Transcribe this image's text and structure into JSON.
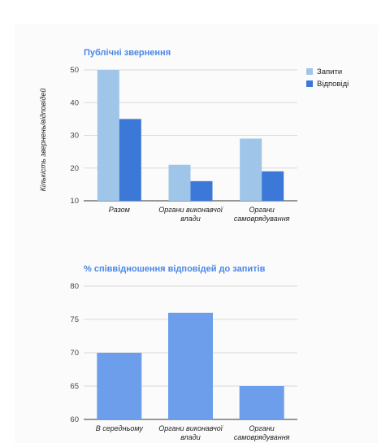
{
  "chart_data": [
    {
      "type": "bar",
      "title": "Публічні звернення",
      "ylabel": "Кількість звернень/відповідей",
      "xlabel": "",
      "ylim": [
        10,
        50
      ],
      "yticks": [
        10,
        20,
        30,
        40,
        50
      ],
      "grid": true,
      "legend_position": "right",
      "categories": [
        [
          "Разом"
        ],
        [
          "Органи виконавчої",
          "влади"
        ],
        [
          "Органи",
          "самоврядування"
        ]
      ],
      "series": [
        {
          "name": "Запити",
          "color": "#9fc5e8",
          "values": [
            50,
            21,
            29
          ]
        },
        {
          "name": "Відповіді",
          "color": "#3c78d8",
          "values": [
            35,
            16,
            19
          ]
        }
      ]
    },
    {
      "type": "bar",
      "title": "% співвідношення відповідей до запитів",
      "xlabel": "",
      "ylabel": "",
      "ylim": [
        60,
        80
      ],
      "yticks": [
        60,
        65,
        70,
        75,
        80
      ],
      "grid": true,
      "categories": [
        [
          "В середньому"
        ],
        [
          "Органи виконавчої",
          "влади"
        ],
        [
          "Органи",
          "самоврядування"
        ]
      ],
      "series": [
        {
          "color": "#6d9eeb",
          "values": [
            70,
            76,
            65
          ]
        }
      ]
    }
  ]
}
